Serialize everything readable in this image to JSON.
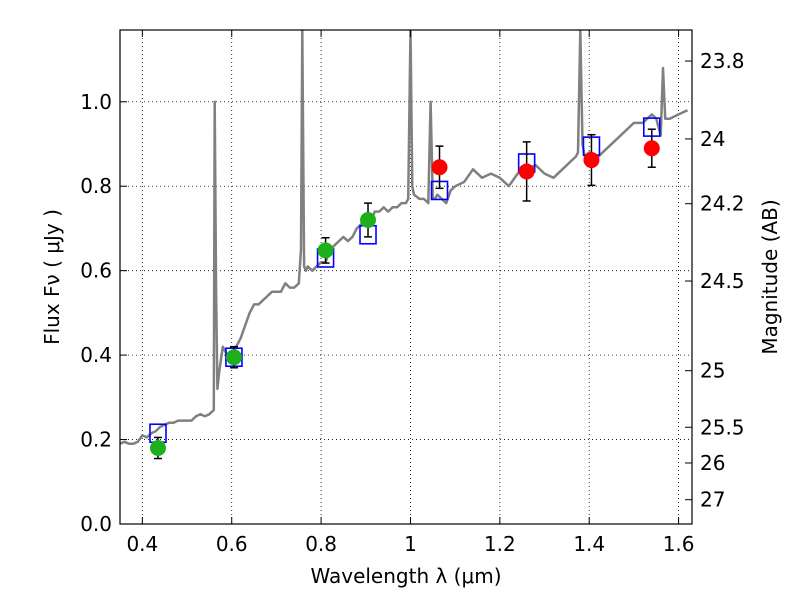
{
  "chart_data": {
    "type": "scatter",
    "xlabel": "Wavelength  λ (μm)",
    "ylabel": "Flux  Fν  ( μJy )",
    "y2label": "Magnitude (AB)",
    "xlim": [
      0.35,
      1.63
    ],
    "ylim": [
      0.0,
      1.17
    ],
    "grid": true,
    "x_ticks": [
      0.4,
      0.6,
      0.8,
      1.0,
      1.2,
      1.4,
      1.6
    ],
    "x_tick_labels": [
      "0.4",
      "0.6",
      "0.8",
      "1",
      "1.2",
      "1.4",
      "1.6"
    ],
    "y_ticks": [
      0.0,
      0.2,
      0.4,
      0.6,
      0.8,
      1.0
    ],
    "y_tick_labels": [
      "0.0",
      "0.2",
      "0.4",
      "0.6",
      "0.8",
      "1.0"
    ],
    "y2_tick_labels": [
      "23.8",
      "24",
      "24.2",
      "24.5",
      "25",
      "25.5",
      "26",
      "27"
    ],
    "spectrum": {
      "color": "#808080",
      "x": [
        0.35,
        0.36,
        0.37,
        0.38,
        0.39,
        0.4,
        0.41,
        0.42,
        0.43,
        0.44,
        0.45,
        0.46,
        0.47,
        0.48,
        0.49,
        0.5,
        0.51,
        0.52,
        0.53,
        0.54,
        0.55,
        0.56,
        0.562,
        0.565,
        0.568,
        0.572,
        0.58,
        0.59,
        0.6,
        0.61,
        0.62,
        0.63,
        0.64,
        0.65,
        0.66,
        0.67,
        0.68,
        0.69,
        0.7,
        0.71,
        0.72,
        0.73,
        0.74,
        0.75,
        0.755,
        0.758,
        0.762,
        0.766,
        0.77,
        0.78,
        0.79,
        0.8,
        0.81,
        0.82,
        0.83,
        0.84,
        0.85,
        0.86,
        0.87,
        0.88,
        0.89,
        0.9,
        0.91,
        0.92,
        0.93,
        0.94,
        0.95,
        0.96,
        0.97,
        0.98,
        0.99,
        0.995,
        1.0,
        1.004,
        1.008,
        1.02,
        1.03,
        1.04,
        1.045,
        1.05,
        1.055,
        1.06,
        1.07,
        1.08,
        1.09,
        1.1,
        1.12,
        1.14,
        1.16,
        1.18,
        1.2,
        1.22,
        1.24,
        1.26,
        1.28,
        1.3,
        1.32,
        1.34,
        1.36,
        1.37,
        1.375,
        1.38,
        1.385,
        1.39,
        1.4,
        1.42,
        1.44,
        1.46,
        1.48,
        1.5,
        1.52,
        1.54,
        1.55,
        1.56,
        1.565,
        1.57,
        1.58,
        1.6,
        1.62
      ],
      "y": [
        0.19,
        0.195,
        0.19,
        0.19,
        0.195,
        0.21,
        0.205,
        0.215,
        0.22,
        0.23,
        0.235,
        0.24,
        0.24,
        0.245,
        0.245,
        0.245,
        0.245,
        0.255,
        0.26,
        0.255,
        0.26,
        0.27,
        1.0,
        0.55,
        0.32,
        0.36,
        0.42,
        0.4,
        0.4,
        0.42,
        0.44,
        0.47,
        0.5,
        0.52,
        0.52,
        0.53,
        0.54,
        0.55,
        0.55,
        0.55,
        0.57,
        0.56,
        0.56,
        0.57,
        0.65,
        1.17,
        0.61,
        0.6,
        0.61,
        0.6,
        0.61,
        0.62,
        0.62,
        0.65,
        0.66,
        0.67,
        0.68,
        0.67,
        0.68,
        0.7,
        0.71,
        0.73,
        0.71,
        0.74,
        0.74,
        0.75,
        0.74,
        0.75,
        0.75,
        0.76,
        0.76,
        0.77,
        1.17,
        0.8,
        0.78,
        0.77,
        0.77,
        0.76,
        1.0,
        0.77,
        0.77,
        0.78,
        0.77,
        0.76,
        0.79,
        0.8,
        0.81,
        0.84,
        0.82,
        0.83,
        0.82,
        0.8,
        0.83,
        0.84,
        0.85,
        0.83,
        0.82,
        0.84,
        0.86,
        0.87,
        0.88,
        1.17,
        0.9,
        0.87,
        0.88,
        0.87,
        0.89,
        0.91,
        0.93,
        0.95,
        0.95,
        0.97,
        0.96,
        0.92,
        1.08,
        0.96,
        0.96,
        0.97,
        0.98
      ]
    },
    "model_points": {
      "marker": "open-square",
      "color": "#0000ff",
      "x": [
        0.435,
        0.605,
        0.81,
        0.905,
        1.065,
        1.26,
        1.405,
        1.54
      ],
      "y": [
        0.215,
        0.395,
        0.63,
        0.685,
        0.79,
        0.855,
        0.895,
        0.94
      ]
    },
    "observed_points": [
      {
        "x": 0.435,
        "y": 0.18,
        "yerr": 0.025,
        "color": "#1cb01c"
      },
      {
        "x": 0.605,
        "y": 0.395,
        "yerr": 0.025,
        "color": "#1cb01c"
      },
      {
        "x": 0.81,
        "y": 0.648,
        "yerr": 0.03,
        "color": "#1cb01c"
      },
      {
        "x": 0.905,
        "y": 0.72,
        "yerr": 0.04,
        "color": "#1cb01c"
      },
      {
        "x": 1.065,
        "y": 0.845,
        "yerr": 0.05,
        "color": "#ff0000"
      },
      {
        "x": 1.26,
        "y": 0.835,
        "yerr": 0.07,
        "color": "#ff0000"
      },
      {
        "x": 1.405,
        "y": 0.862,
        "yerr": 0.06,
        "color": "#ff0000"
      },
      {
        "x": 1.54,
        "y": 0.89,
        "yerr": 0.045,
        "color": "#ff0000"
      }
    ]
  }
}
